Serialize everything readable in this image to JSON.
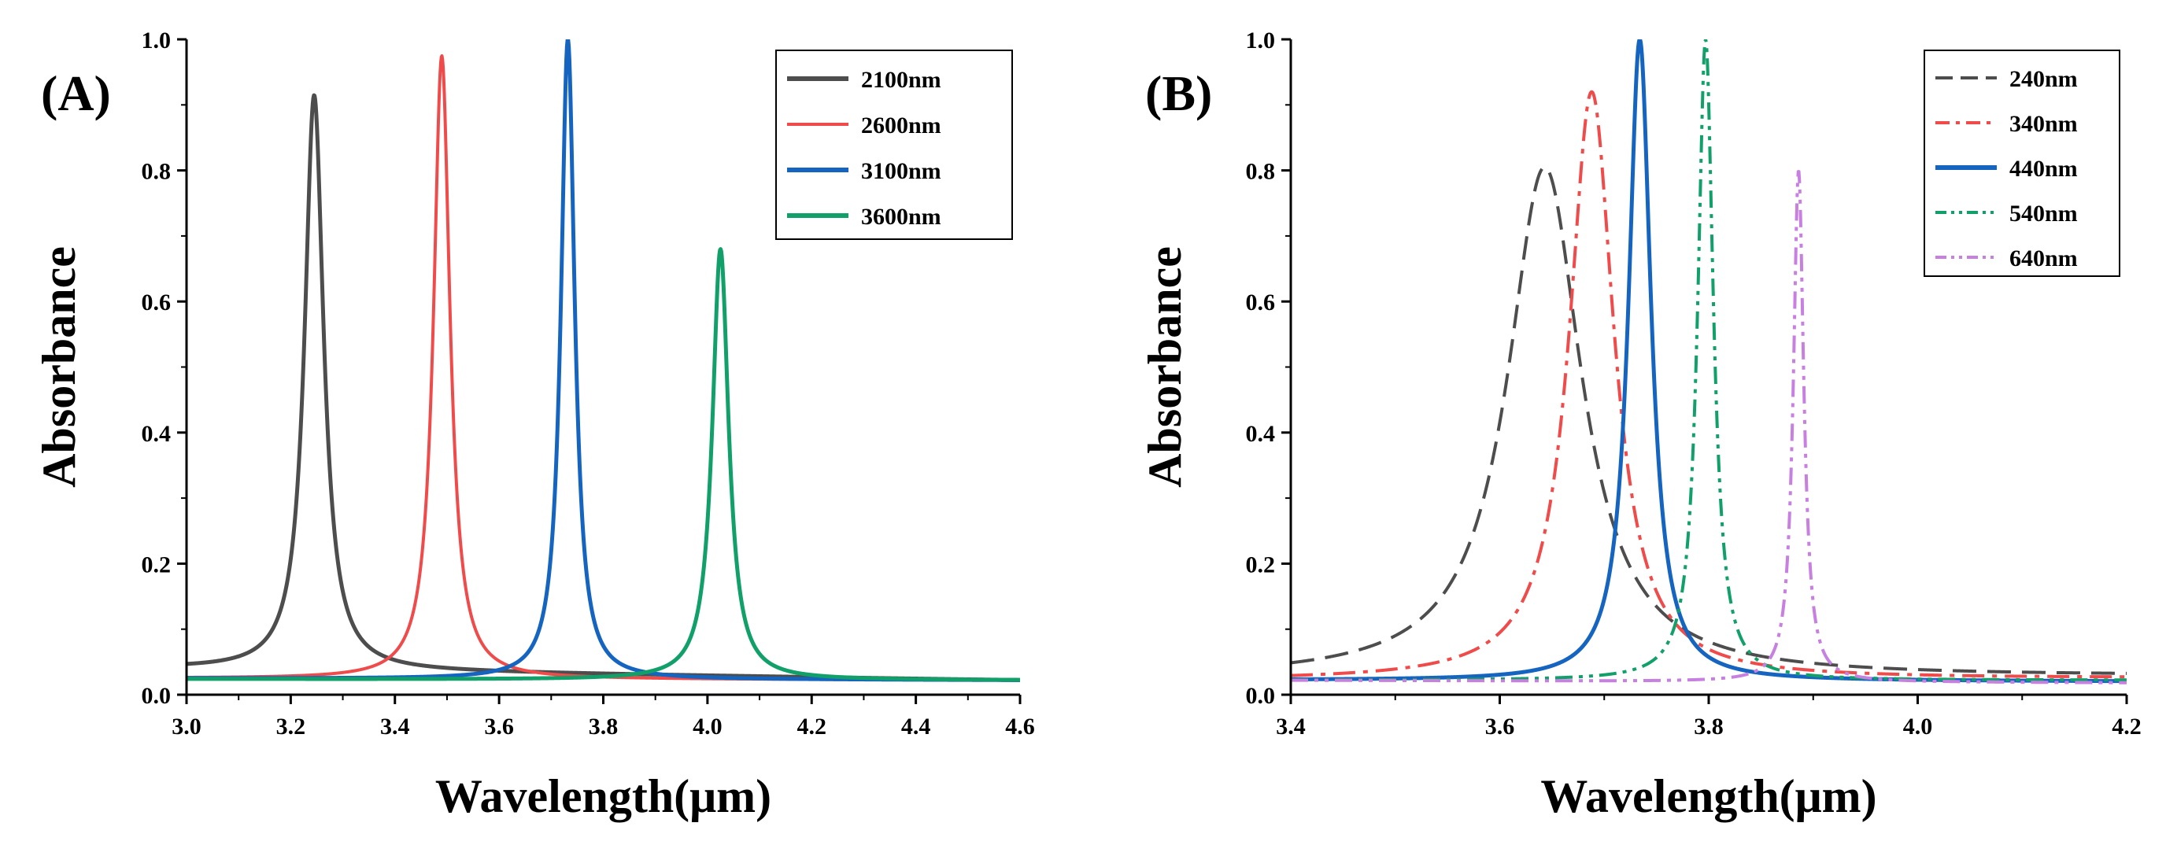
{
  "chart_data": [
    {
      "panel_label": "(A)",
      "type": "line",
      "xlabel": "Wavelength(μm)",
      "ylabel": "Absorbance",
      "xlim": [
        3.0,
        4.6
      ],
      "ylim": [
        0.0,
        1.0
      ],
      "xticks": [
        "3.0",
        "3.2",
        "3.4",
        "3.6",
        "3.8",
        "4.0",
        "4.2",
        "4.4",
        "4.6"
      ],
      "yticks": [
        "0.0",
        "0.2",
        "0.4",
        "0.6",
        "0.8",
        "1.0"
      ],
      "legend_position": "top-right",
      "series": [
        {
          "name": "2100nm",
          "color": "#4d4d4d",
          "dash": "solid",
          "width": "bold",
          "peak_x": 3.245,
          "peak_y": 0.915,
          "hwhm": 0.022,
          "base_left": 0.04,
          "base_right": 0.022
        },
        {
          "name": "2600nm",
          "color": "#f04b4b",
          "dash": "solid",
          "width": "normal",
          "peak_x": 3.49,
          "peak_y": 0.975,
          "hwhm": 0.019,
          "base_left": 0.025,
          "base_right": 0.022
        },
        {
          "name": "3100nm",
          "color": "#1565c0",
          "dash": "solid",
          "width": "bold",
          "peak_x": 3.732,
          "peak_y": 1.0,
          "hwhm": 0.016,
          "base_left": 0.025,
          "base_right": 0.022
        },
        {
          "name": "3600nm",
          "color": "#12a06a",
          "dash": "solid",
          "width": "bold",
          "peak_x": 4.025,
          "peak_y": 0.68,
          "hwhm": 0.019,
          "base_left": 0.024,
          "base_right": 0.022
        }
      ]
    },
    {
      "panel_label": "(B)",
      "type": "line",
      "xlabel": "Wavelength(μm)",
      "ylabel": "Absorbance",
      "xlim": [
        3.4,
        4.2
      ],
      "ylim": [
        0.0,
        1.0
      ],
      "xticks": [
        "3.4",
        "3.6",
        "3.8",
        "4.0",
        "4.2"
      ],
      "yticks": [
        "0.0",
        "0.2",
        "0.4",
        "0.6",
        "0.8",
        "1.0"
      ],
      "legend_position": "top-right",
      "series": [
        {
          "name": "240nm",
          "color": "#4d4d4d",
          "dash": "dash",
          "width": "normal",
          "peak_x": 3.643,
          "peak_y": 0.805,
          "hwhm": 0.043,
          "base_left": 0.025,
          "base_right": 0.028
        },
        {
          "name": "340nm",
          "color": "#f04b4b",
          "dash": "dashdot",
          "width": "normal",
          "peak_x": 3.688,
          "peak_y": 0.92,
          "hwhm": 0.026,
          "base_left": 0.022,
          "base_right": 0.025
        },
        {
          "name": "440nm",
          "color": "#1565c0",
          "dash": "solid",
          "width": "bold",
          "peak_x": 3.734,
          "peak_y": 1.0,
          "hwhm": 0.013,
          "base_left": 0.022,
          "base_right": 0.02
        },
        {
          "name": "540nm",
          "color": "#12a06a",
          "dash": "dashdotdot",
          "width": "normal",
          "peak_x": 3.797,
          "peak_y": 1.0,
          "hwhm": 0.009,
          "base_left": 0.022,
          "base_right": 0.022
        },
        {
          "name": "640nm",
          "color": "#c77fe0",
          "dash": "dashdotdot",
          "width": "normal",
          "peak_x": 3.886,
          "peak_y": 0.8,
          "hwhm": 0.006,
          "base_left": 0.022,
          "base_right": 0.018
        }
      ]
    }
  ]
}
